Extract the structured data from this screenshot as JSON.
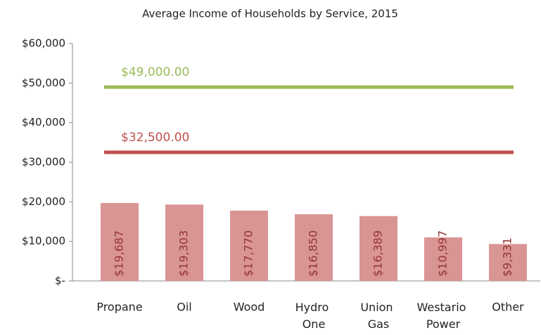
{
  "chart_data": {
    "type": "bar",
    "title": "Average Income of Households by Service, 2015",
    "categories": [
      "Propane",
      "Oil",
      "Wood",
      "Hydro One",
      "Union Gas",
      "Westario Power",
      "Other"
    ],
    "values": [
      19687,
      19303,
      17770,
      16850,
      16389,
      10997,
      9331
    ],
    "value_labels": [
      "$19,687",
      "$19,303",
      "$17,770",
      "$16,850",
      "$16,389",
      "$10,997",
      "$9,331"
    ],
    "color": "#d99594",
    "value_label_color": "#943634",
    "reference_lines": [
      {
        "value": 49000,
        "label": "$49,000.00",
        "color": "#9bbb59"
      },
      {
        "value": 32500,
        "label": "$32,500.00",
        "color": "#c0504d"
      }
    ],
    "ylim": [
      0,
      60000
    ],
    "yticks": [
      {
        "value": 0,
        "label": "$-"
      },
      {
        "value": 10000,
        "label": "$10,000"
      },
      {
        "value": 20000,
        "label": "$20,000"
      },
      {
        "value": 30000,
        "label": "$30,000"
      },
      {
        "value": 40000,
        "label": "$40,000"
      },
      {
        "value": 50000,
        "label": "$50,000"
      },
      {
        "value": 60000,
        "label": "$60,000"
      }
    ],
    "grid": false
  }
}
